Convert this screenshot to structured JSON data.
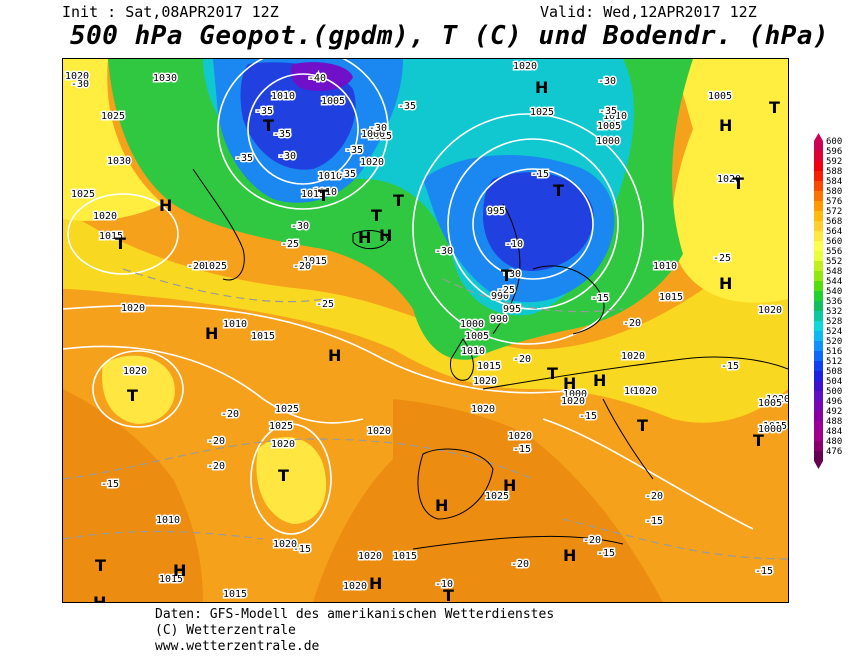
{
  "header": {
    "init": "Init : Sat,08APR2017 12Z",
    "valid": "Valid: Wed,12APR2017 12Z",
    "title": "500 hPa Geopot.(gpdm), T (C) und Bodendr. (hPa)"
  },
  "legend": {
    "values": [
      "600",
      "596",
      "592",
      "588",
      "584",
      "580",
      "576",
      "572",
      "568",
      "564",
      "560",
      "556",
      "552",
      "548",
      "544",
      "540",
      "536",
      "532",
      "528",
      "524",
      "520",
      "516",
      "512",
      "508",
      "504",
      "500",
      "496",
      "492",
      "488",
      "484",
      "480",
      "476"
    ],
    "colors": [
      "#cc0055",
      "#dd0033",
      "#ee0011",
      "#f52000",
      "#f84a00",
      "#fb7400",
      "#ff9a00",
      "#ffba10",
      "#ffd030",
      "#ffe640",
      "#ffff50",
      "#e8ff40",
      "#c0f020",
      "#90e810",
      "#55dd10",
      "#22d030",
      "#10c060",
      "#10c8a0",
      "#10d8d8",
      "#10b8f0",
      "#1090f8",
      "#1068f8",
      "#1040f0",
      "#2020e0",
      "#4010d0",
      "#6010c0",
      "#7808b0",
      "#8800a0",
      "#980098",
      "#a00088",
      "#880068",
      "#660050"
    ]
  },
  "map": {
    "colors": {
      "orange": "#f6a11c",
      "deep_orange": "#ec8c10",
      "yellow": "#f8d820",
      "light_yellow": "#ffee40",
      "green": "#30c840",
      "cyan": "#12c8d0",
      "blue": "#1a88f0",
      "deep_blue": "#2040e0",
      "purple": "#7010c8",
      "coast": "#000000"
    },
    "pressure_labels": [
      "1020",
      "1030",
      "1025",
      "1030",
      "1025",
      "1020",
      "1015",
      "1025",
      "1020",
      "1015",
      "1010",
      "1005",
      "1015",
      "1020",
      "1000",
      "1010",
      "1010",
      "1015",
      "1020",
      "1025",
      "1010",
      "1005",
      "1000",
      "995",
      "990",
      "995",
      "990",
      "1000",
      "1005",
      "1010",
      "1015",
      "1020",
      "1015",
      "1020",
      "1010",
      "1015",
      "1005",
      "1000",
      "1015",
      "1010",
      "1020",
      "1025",
      "1025",
      "1020",
      "1010",
      "1015",
      "1020",
      "1025",
      "1020",
      "1020",
      "1015",
      "1020",
      "1020",
      "1020",
      "1020",
      "1005",
      "1000",
      "1015",
      "1020",
      "1015",
      "1020",
      "1020",
      "1020"
    ],
    "temp_labels": [
      "-30",
      "-35",
      "-40",
      "-35",
      "-35",
      "-35",
      "-35",
      "-30",
      "-25",
      "-30",
      "-35",
      "-30",
      "-35",
      "-30",
      "-30",
      "-25",
      "-20",
      "-25",
      "-30",
      "-25",
      "-20",
      "-20",
      "-20",
      "-20",
      "-15",
      "-15",
      "-20",
      "-20",
      "-20",
      "-15",
      "-15",
      "-15",
      "-15",
      "-15",
      "-10",
      "-20",
      "-15",
      "-10",
      "-15",
      "-20",
      "-15"
    ],
    "highs": [
      "H",
      "H",
      "H",
      "H",
      "H",
      "H",
      "H",
      "H",
      "H",
      "H",
      "H",
      "H",
      "H",
      "H",
      "H",
      "H",
      "H"
    ],
    "lows": [
      "T",
      "T",
      "T",
      "T",
      "T",
      "T",
      "T",
      "T",
      "T",
      "T",
      "T",
      "T",
      "T",
      "T",
      "T",
      "T"
    ]
  },
  "footer": {
    "line1": "Daten: GFS-Modell des amerikanischen Wetterdienstes",
    "line2": "(C) Wetterzentrale",
    "line3": "www.wetterzentrale.de"
  }
}
